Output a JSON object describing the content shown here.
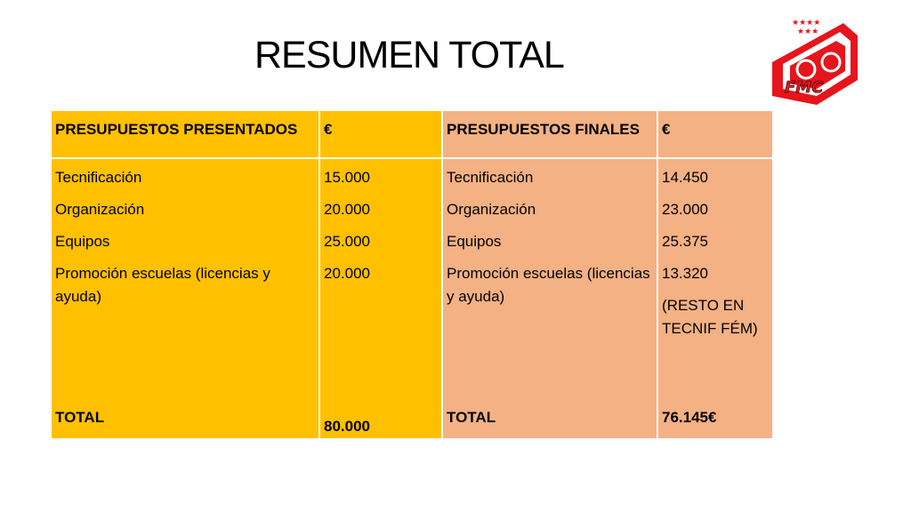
{
  "title": "RESUMEN TOTAL",
  "logo": {
    "text": "FMC",
    "icon": "cyclist-flag-logo"
  },
  "colors": {
    "presented": "#FFC000",
    "final": "#F4B183",
    "logo_red": "#E8141C"
  },
  "table": {
    "headers": [
      "PRESUPUESTOS PRESENTADOS",
      "€",
      "PRESUPUESTOS FINALES",
      "€"
    ],
    "presented": {
      "items": [
        "Tecnificación",
        "Organización",
        "Equipos",
        "Promoción escuelas (licencias y ayuda)"
      ],
      "values": [
        "15.000",
        "20.000",
        "25.000",
        "20.000"
      ],
      "total_label": "TOTAL",
      "total_value": "80.000"
    },
    "final": {
      "items": [
        "Tecnificación",
        "Organización",
        "Equipos",
        "Promoción escuelas (licencias y ayuda)"
      ],
      "values": [
        "14.450",
        "23.000",
        "25.375",
        "13.320"
      ],
      "note": "(RESTO EN TECNIF FÉM)",
      "total_label": "TOTAL",
      "total_value": "76.145€"
    }
  }
}
